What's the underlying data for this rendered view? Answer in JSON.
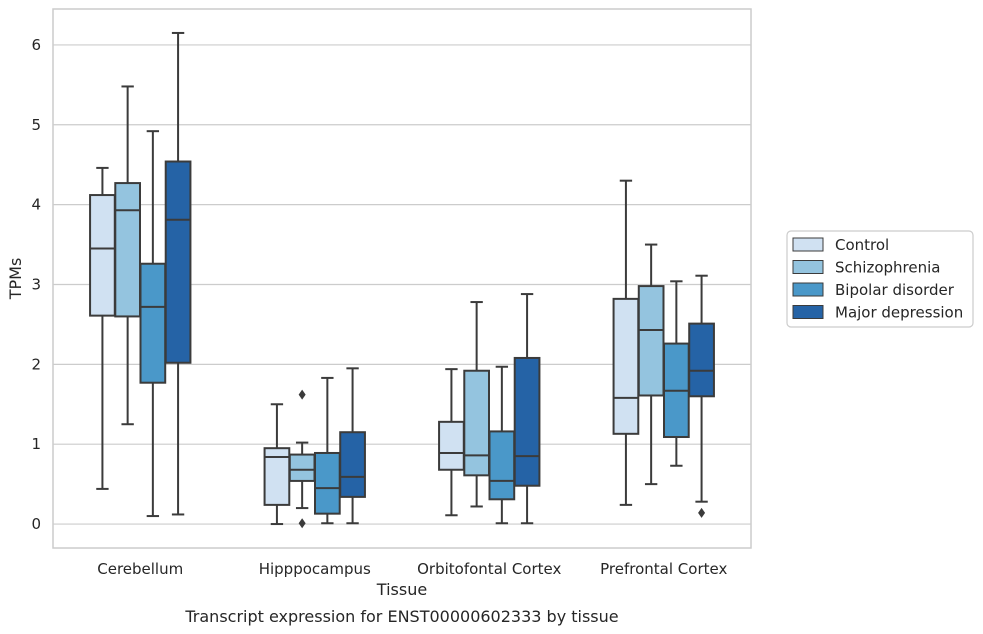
{
  "chart_data": {
    "type": "boxplot",
    "title": "",
    "caption": "Transcript expression for ENST00000602333 by tissue",
    "xlabel": "Tissue",
    "ylabel": "TPMs",
    "ylim": [
      -0.3,
      6.45
    ],
    "yticks": [
      0,
      1,
      2,
      3,
      4,
      5,
      6
    ],
    "grid": "horizontal",
    "legend_position": "right",
    "categories": [
      "Cerebellum",
      "Hipppocampus",
      "Orbitofontal Cortex",
      "Prefrontal Cortex"
    ],
    "series": [
      {
        "name": "Control",
        "color": "#d0e1f2",
        "boxes": [
          {
            "whisker_low": 0.44,
            "q1": 2.61,
            "median": 3.45,
            "q3": 4.12,
            "whisker_high": 4.46,
            "outliers": []
          },
          {
            "whisker_low": 0.0,
            "q1": 0.24,
            "median": 0.84,
            "q3": 0.95,
            "whisker_high": 1.5,
            "outliers": []
          },
          {
            "whisker_low": 0.11,
            "q1": 0.68,
            "median": 0.89,
            "q3": 1.28,
            "whisker_high": 1.94,
            "outliers": []
          },
          {
            "whisker_low": 0.24,
            "q1": 1.13,
            "median": 1.58,
            "q3": 2.82,
            "whisker_high": 4.3,
            "outliers": []
          }
        ]
      },
      {
        "name": "Schizophrenia",
        "color": "#94c4df",
        "boxes": [
          {
            "whisker_low": 1.25,
            "q1": 2.6,
            "median": 3.93,
            "q3": 4.27,
            "whisker_high": 5.48,
            "outliers": []
          },
          {
            "whisker_low": 0.2,
            "q1": 0.54,
            "median": 0.68,
            "q3": 0.87,
            "whisker_high": 1.02,
            "outliers": [
              1.62,
              0.01
            ]
          },
          {
            "whisker_low": 0.22,
            "q1": 0.61,
            "median": 0.86,
            "q3": 1.92,
            "whisker_high": 2.78,
            "outliers": []
          },
          {
            "whisker_low": 0.5,
            "q1": 1.61,
            "median": 2.43,
            "q3": 2.98,
            "whisker_high": 3.5,
            "outliers": []
          }
        ]
      },
      {
        "name": "Bipolar disorder",
        "color": "#4a98c9",
        "boxes": [
          {
            "whisker_low": 0.1,
            "q1": 1.77,
            "median": 2.72,
            "q3": 3.26,
            "whisker_high": 4.92,
            "outliers": []
          },
          {
            "whisker_low": 0.01,
            "q1": 0.13,
            "median": 0.45,
            "q3": 0.89,
            "whisker_high": 1.83,
            "outliers": []
          },
          {
            "whisker_low": 0.01,
            "q1": 0.31,
            "median": 0.54,
            "q3": 1.16,
            "whisker_high": 1.97,
            "outliers": []
          },
          {
            "whisker_low": 0.73,
            "q1": 1.09,
            "median": 1.67,
            "q3": 2.26,
            "whisker_high": 3.04,
            "outliers": []
          }
        ]
      },
      {
        "name": "Major depression",
        "color": "#2563a6",
        "boxes": [
          {
            "whisker_low": 0.12,
            "q1": 2.02,
            "median": 3.81,
            "q3": 4.54,
            "whisker_high": 6.15,
            "outliers": []
          },
          {
            "whisker_low": 0.01,
            "q1": 0.34,
            "median": 0.59,
            "q3": 1.15,
            "whisker_high": 1.95,
            "outliers": []
          },
          {
            "whisker_low": 0.01,
            "q1": 0.48,
            "median": 0.85,
            "q3": 2.08,
            "whisker_high": 2.88,
            "outliers": []
          },
          {
            "whisker_low": 0.28,
            "q1": 1.6,
            "median": 1.92,
            "q3": 2.51,
            "whisker_high": 3.11,
            "outliers": [
              0.14
            ]
          }
        ]
      }
    ]
  }
}
